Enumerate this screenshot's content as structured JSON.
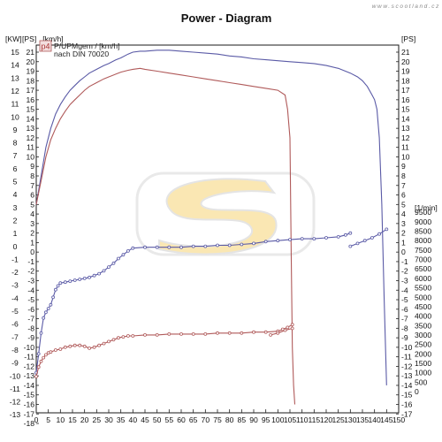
{
  "page": {
    "watermark": "www.scootland.cz"
  },
  "chart_data": {
    "type": "line",
    "title": "Power - Diagram",
    "legend": {
      "badge": "p4",
      "line1": "P/UPMgem / [km/h]",
      "line2": "nach DIN 70020",
      "placement": "top-left"
    },
    "x_unit_label": "[km/h]",
    "x_axis": {
      "range": [
        0,
        150
      ],
      "ticks": [
        0,
        5,
        10,
        15,
        20,
        25,
        30,
        35,
        40,
        45,
        50,
        55,
        60,
        65,
        70,
        75,
        80,
        85,
        90,
        95,
        100,
        105,
        110,
        115,
        120,
        125,
        130,
        135,
        140,
        145,
        150
      ]
    },
    "kw_axis": {
      "unit": "[KW]",
      "range": [
        -13,
        15
      ],
      "ticks": [
        15,
        14,
        13,
        12,
        11,
        10,
        9,
        8,
        7,
        6,
        5,
        4,
        3,
        2,
        1,
        0,
        -1,
        -2,
        -3,
        -4,
        -5,
        -6,
        -7,
        -8,
        -9,
        -10,
        -11,
        -12,
        -13
      ]
    },
    "ps_axis": {
      "unit": "[PS]",
      "range": [
        -18,
        21
      ],
      "ticks": [
        21,
        20,
        19,
        18,
        17,
        16,
        15,
        14,
        13,
        12,
        11,
        10,
        9,
        8,
        7,
        6,
        5,
        4,
        3,
        2,
        1,
        0,
        -1,
        -2,
        -3,
        -4,
        -5,
        -6,
        -7,
        -8,
        -9,
        -10,
        -11,
        -12,
        -13,
        -14,
        -15,
        -16,
        -17,
        -18
      ]
    },
    "ps_axis_right": {
      "unit": "[PS]",
      "ticks": [
        21,
        20,
        19,
        18,
        17,
        16,
        15,
        14,
        13,
        12,
        11,
        10,
        9,
        8,
        7,
        6,
        5,
        4,
        3,
        2,
        1,
        0,
        -1,
        -2,
        -3,
        -4,
        -5,
        -6,
        -7,
        -8,
        -9,
        -10,
        -11,
        -12,
        -13,
        -14,
        -15,
        -16,
        -17
      ]
    },
    "rpm_axis": {
      "unit": "[1/min]",
      "range": [
        0,
        9500
      ],
      "ticks": [
        9500,
        9000,
        8500,
        8000,
        7500,
        7000,
        6500,
        6000,
        5500,
        5000,
        4500,
        4000,
        3500,
        3000,
        2500,
        2000,
        1500,
        1000,
        500,
        0
      ]
    },
    "series": [
      {
        "name": "",
        "color": "#5a5aa6",
        "axis": "ps",
        "x": [
          0,
          2,
          4,
          6,
          8,
          10,
          12,
          14,
          16,
          18,
          20,
          22,
          25,
          28,
          30,
          33,
          35,
          38,
          40,
          43,
          45,
          50,
          55,
          60,
          65,
          70,
          75,
          80,
          85,
          90,
          95,
          100,
          105,
          110,
          115,
          120,
          125,
          130,
          133,
          135,
          137,
          139,
          140,
          141,
          142,
          143,
          144,
          145
        ],
        "y": [
          5,
          8,
          11,
          13,
          14.5,
          15.5,
          16.3,
          17,
          17.5,
          18,
          18.4,
          18.8,
          19.2,
          19.6,
          19.8,
          20.2,
          20.4,
          20.8,
          21,
          21.1,
          21.1,
          21.2,
          21.2,
          21.1,
          21,
          20.9,
          20.8,
          20.6,
          20.5,
          20.3,
          20.2,
          20.1,
          20,
          19.9,
          19.8,
          19.6,
          19.3,
          18.8,
          18.4,
          18,
          17.4,
          16.5,
          16,
          15,
          12,
          5,
          -5,
          -14
        ]
      },
      {
        "name": "",
        "color": "#b05a5a",
        "axis": "ps",
        "x": [
          0,
          2,
          4,
          6,
          8,
          10,
          12,
          14,
          16,
          18,
          20,
          22,
          25,
          28,
          30,
          33,
          35,
          38,
          40,
          43,
          45,
          50,
          55,
          60,
          65,
          70,
          75,
          80,
          85,
          90,
          95,
          100,
          103,
          104,
          105,
          105.5,
          106,
          106.5,
          107
        ],
        "y": [
          5,
          7.5,
          10,
          11.8,
          13,
          14,
          14.8,
          15.5,
          16,
          16.5,
          17,
          17.4,
          17.8,
          18.2,
          18.4,
          18.7,
          18.9,
          19.1,
          19.2,
          19.3,
          19.2,
          19,
          18.8,
          18.6,
          18.4,
          18.2,
          18,
          17.8,
          17.6,
          17.4,
          17.2,
          17,
          16.5,
          15,
          12,
          0,
          -10,
          -14,
          -16
        ]
      },
      {
        "name": "",
        "color": "#5a5aa6",
        "axis": "rpm",
        "x": [
          0,
          1,
          2,
          3,
          4,
          5,
          6,
          7,
          8,
          9,
          10,
          12,
          14,
          16,
          18,
          20,
          22,
          24,
          26,
          28,
          30,
          32,
          34,
          36,
          38,
          40,
          45,
          50,
          55,
          60,
          65,
          70,
          75,
          80,
          85,
          90,
          95,
          100,
          105,
          110,
          115,
          120,
          125,
          128,
          130
        ],
        "y": [
          1000,
          2000,
          3100,
          3900,
          4200,
          4400,
          4600,
          5000,
          5400,
          5600,
          5750,
          5800,
          5850,
          5900,
          5950,
          6000,
          6050,
          6150,
          6250,
          6400,
          6600,
          6800,
          7050,
          7250,
          7450,
          7600,
          7650,
          7650,
          7650,
          7650,
          7700,
          7700,
          7750,
          7750,
          7800,
          7850,
          7950,
          8000,
          8050,
          8100,
          8100,
          8150,
          8200,
          8300,
          8400
        ],
        "markers": true
      },
      {
        "name": "",
        "color": "#5a5aa6",
        "axis": "rpm",
        "x": [
          130,
          133,
          136,
          139,
          142,
          145
        ],
        "y": [
          7700,
          7850,
          8000,
          8150,
          8350,
          8600
        ],
        "markers": true
      },
      {
        "name": "",
        "color": "#b05a5a",
        "axis": "rpm",
        "x": [
          0,
          1,
          2,
          3,
          4,
          5,
          6,
          8,
          10,
          12,
          14,
          16,
          18,
          20,
          22,
          24,
          26,
          28,
          30,
          32,
          34,
          36,
          38,
          40,
          45,
          50,
          55,
          60,
          65,
          70,
          75,
          80,
          85,
          90,
          95,
          100,
          102,
          104,
          106
        ],
        "y": [
          800,
          1300,
          1600,
          1800,
          1950,
          2050,
          2100,
          2200,
          2250,
          2350,
          2400,
          2450,
          2450,
          2400,
          2300,
          2350,
          2450,
          2550,
          2650,
          2750,
          2850,
          2900,
          2950,
          2950,
          3000,
          3000,
          3050,
          3050,
          3050,
          3050,
          3100,
          3100,
          3100,
          3150,
          3150,
          3200,
          3300,
          3400,
          3550
        ],
        "markers": true
      },
      {
        "name": "",
        "color": "#b05a5a",
        "axis": "rpm",
        "x": [
          97,
          100,
          103,
          106
        ],
        "y": [
          3000,
          3100,
          3250,
          3350
        ],
        "markers": true
      }
    ],
    "grid": false
  }
}
